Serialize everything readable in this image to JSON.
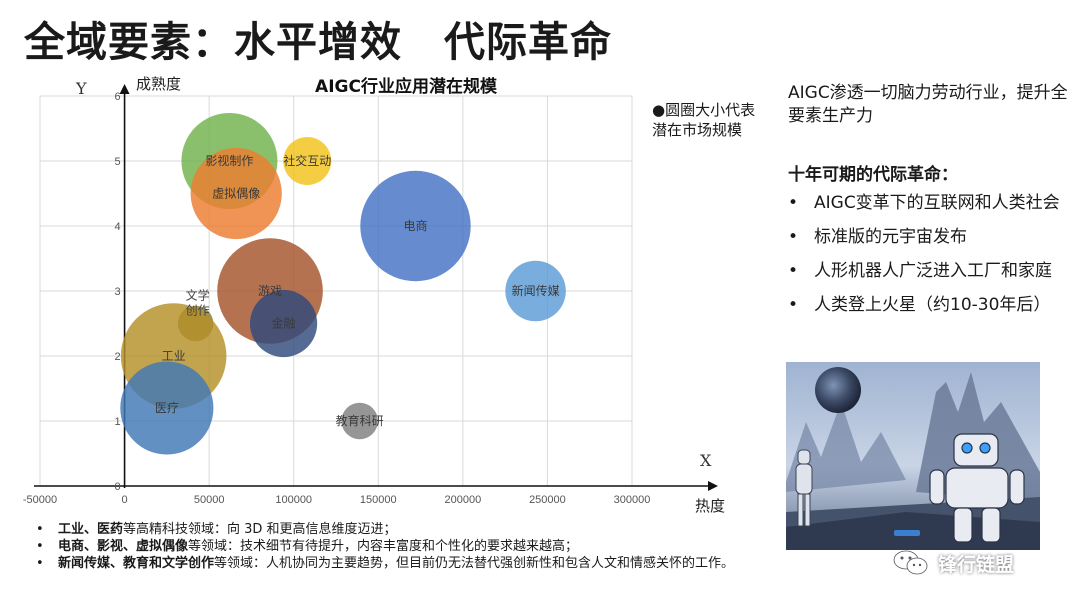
{
  "page": {
    "title": "全域要素：水平增效　代际革命"
  },
  "chart_data": {
    "type": "scatter",
    "title": "AIGC行业应用潜在规模",
    "ylabel": "成熟度",
    "xlabel": "热度",
    "y_axis_letter": "Y",
    "x_axis_letter": "X",
    "xlim": [
      -50000,
      300000
    ],
    "ylim": [
      0,
      6
    ],
    "x_ticks": [
      "-50000",
      "0",
      "50000",
      "100000",
      "150000",
      "200000",
      "250000",
      "300000"
    ],
    "y_ticks": [
      "0",
      "1",
      "2",
      "3",
      "4",
      "5",
      "6"
    ],
    "grid": true,
    "points": [
      {
        "label": "影视制作",
        "x": 62000,
        "y": 5.0,
        "size": 1.0,
        "color": "#70b24a"
      },
      {
        "label": "虚拟偶像",
        "x": 66000,
        "y": 4.5,
        "size": 0.95,
        "color": "#ed7d31"
      },
      {
        "label": "社交互动",
        "x": 108000,
        "y": 5.0,
        "size": 0.5,
        "color": "#f2c218"
      },
      {
        "label": "电商",
        "x": 172000,
        "y": 4.0,
        "size": 1.15,
        "color": "#4472c4"
      },
      {
        "label": "新闻传媒",
        "x": 243000,
        "y": 3.0,
        "size": 0.63,
        "color": "#5b9bd5"
      },
      {
        "label": "游戏",
        "x": 86000,
        "y": 3.0,
        "size": 1.1,
        "color": "#a5532b"
      },
      {
        "label": "文学创作",
        "x": 42000,
        "y": 2.5,
        "size": 0.37,
        "color": "#8b7a2f"
      },
      {
        "label": "金融",
        "x": 94000,
        "y": 2.5,
        "size": 0.7,
        "color": "#2f4b7c"
      },
      {
        "label": "工业",
        "x": 29000,
        "y": 2.0,
        "size": 1.1,
        "color": "#b49028"
      },
      {
        "label": "医疗",
        "x": 25000,
        "y": 1.2,
        "size": 0.97,
        "color": "#3f78b5"
      },
      {
        "label": "教育科研",
        "x": 139000,
        "y": 1.0,
        "size": 0.38,
        "color": "#7f7f7f"
      }
    ]
  },
  "note": {
    "text": "●圆圈大小代表潜在市场规模"
  },
  "right": {
    "intro": "AIGC渗透一切脑力劳动行业，提升全要素生产力",
    "heading": "十年可期的代际革命：",
    "bullet_char": "•",
    "items": [
      "AIGC变革下的互联网和人类社会",
      "标准版的元宇宙发布",
      "人形机器人广泛进入工厂和家庭",
      "人类登上火星（约10-30年后）"
    ]
  },
  "bottom": {
    "bullet_char": "•",
    "items": [
      {
        "bold": "工业、医药",
        "rest": "等高精科技领域：向 3D 和更高信息维度迈进；"
      },
      {
        "bold": "电商、影视、虚拟偶像",
        "rest": "等领域：技术细节有待提升，内容丰富度和个性化的要求越来越高；"
      },
      {
        "bold": "新闻传媒、教育和文学创作",
        "rest": "等领域：人机协同为主要趋势，但目前仍无法替代强创新性和包含人文和情感关怀的工作。"
      }
    ]
  },
  "watermark": {
    "text": "锋行链盟",
    "icon": "wechat-icon"
  },
  "image": {
    "icon": "robot-illustration"
  }
}
